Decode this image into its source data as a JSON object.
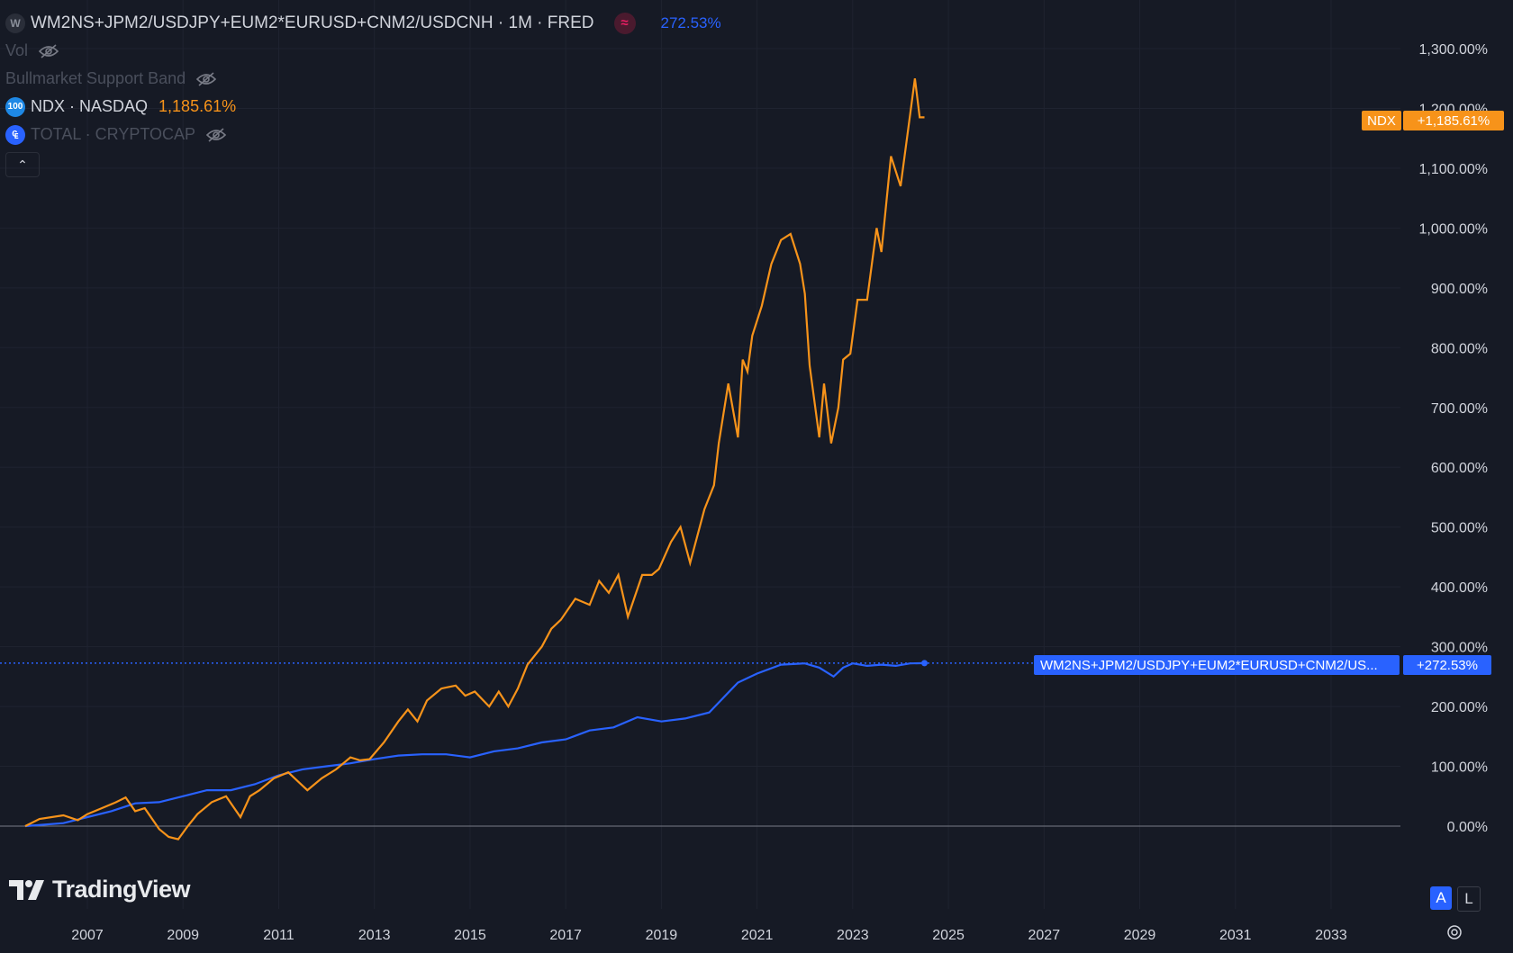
{
  "legend": {
    "main_symbol": "WM2NS+JPM2/USDJPY+EUM2*EURUSD+CNM2/USDCNH · 1M · FRED",
    "main_symbol_icon": "W",
    "main_value": "272.53%",
    "vol_label": "Vol",
    "indicator_label": "Bullmarket Support Band",
    "ndx_label": "NDX · NASDAQ",
    "ndx_icon": "100",
    "ndx_value": "1,185.61%",
    "total_label": "TOTAL · CRYPTOCAP",
    "collapse_icon": "chevron-up-icon"
  },
  "price_labels": {
    "ndx_name": "NDX",
    "ndx_value": "+1,185.61%",
    "m2_name": "WM2NS+JPM2/USDJPY+EUM2*EURUSD+CNM2/US...",
    "m2_value": "+272.53%"
  },
  "logo_text": "TradingView",
  "scale_buttons": {
    "auto": "A",
    "log": "L"
  },
  "colors": {
    "background": "#161a25",
    "ndx": "#f7931a",
    "m2": "#2962ff",
    "grid": "#1f2330",
    "text": "#d1d4dc"
  },
  "chart_data": {
    "type": "line",
    "y_unit": "%",
    "ylim": [
      -100,
      1300
    ],
    "y_ticks": [
      0,
      100,
      200,
      300,
      400,
      500,
      600,
      700,
      800,
      900,
      1000,
      1100,
      1200,
      1300
    ],
    "y_tick_labels": [
      "0.00%",
      "100.00%",
      "200.00%",
      "300.00%",
      "400.00%",
      "500.00%",
      "600.00%",
      "700.00%",
      "800.00%",
      "900.00%",
      "1,000.00%",
      "1,100.00%",
      "1,200.00%",
      "1,300.00%"
    ],
    "x_tick_labels": [
      "2007",
      "2009",
      "2011",
      "2013",
      "2015",
      "2017",
      "2019",
      "2021",
      "2023",
      "2025",
      "2027",
      "2029",
      "2031",
      "2033"
    ],
    "x_ticks": [
      2007,
      2009,
      2011,
      2013,
      2015,
      2017,
      2019,
      2021,
      2023,
      2025,
      2027,
      2029,
      2031,
      2033
    ],
    "series": [
      {
        "name": "NDX · NASDAQ",
        "color": "#f7931a",
        "x": [
          2005.7,
          2006.0,
          2006.5,
          2006.8,
          2007.0,
          2007.3,
          2007.6,
          2007.8,
          2008.0,
          2008.2,
          2008.5,
          2008.7,
          2008.9,
          2009.1,
          2009.3,
          2009.6,
          2009.9,
          2010.2,
          2010.4,
          2010.6,
          2010.9,
          2011.2,
          2011.4,
          2011.6,
          2011.9,
          2012.2,
          2012.5,
          2012.7,
          2012.9,
          2013.2,
          2013.5,
          2013.7,
          2013.9,
          2014.1,
          2014.4,
          2014.7,
          2014.9,
          2015.1,
          2015.4,
          2015.6,
          2015.8,
          2016.0,
          2016.2,
          2016.5,
          2016.7,
          2016.9,
          2017.2,
          2017.5,
          2017.7,
          2017.9,
          2018.1,
          2018.3,
          2018.6,
          2018.8,
          2018.95,
          2019.2,
          2019.4,
          2019.6,
          2019.9,
          2020.1,
          2020.2,
          2020.4,
          2020.6,
          2020.7,
          2020.8,
          2020.9,
          2021.1,
          2021.3,
          2021.5,
          2021.7,
          2021.9,
          2022.0,
          2022.1,
          2022.3,
          2022.4,
          2022.55,
          2022.7,
          2022.8,
          2022.95,
          2023.1,
          2023.3,
          2023.5,
          2023.6,
          2023.8,
          2024.0,
          2024.2,
          2024.3,
          2024.4,
          2024.5
        ],
        "values": [
          0,
          12,
          18,
          10,
          20,
          30,
          40,
          48,
          25,
          30,
          -5,
          -18,
          -22,
          0,
          20,
          40,
          50,
          15,
          50,
          60,
          80,
          90,
          75,
          60,
          80,
          95,
          115,
          110,
          112,
          140,
          175,
          195,
          175,
          210,
          230,
          235,
          218,
          225,
          200,
          225,
          200,
          230,
          270,
          300,
          330,
          345,
          380,
          370,
          410,
          390,
          420,
          350,
          420,
          420,
          430,
          475,
          500,
          440,
          530,
          570,
          640,
          740,
          650,
          780,
          760,
          820,
          870,
          940,
          980,
          990,
          940,
          890,
          770,
          650,
          740,
          640,
          700,
          780,
          790,
          880,
          880,
          1000,
          960,
          1120,
          1070,
          1190,
          1250,
          1185,
          1185
        ]
      },
      {
        "name": "WM2NS+JPM2/USDJPY+EUM2*EURUSD+CNM2/USDCNH",
        "color": "#2962ff",
        "x": [
          2005.7,
          2006.5,
          2007.0,
          2007.5,
          2008.0,
          2008.5,
          2009.0,
          2009.5,
          2010.0,
          2010.5,
          2011.0,
          2011.5,
          2012.0,
          2012.5,
          2013.0,
          2013.5,
          2014.0,
          2014.5,
          2015.0,
          2015.5,
          2016.0,
          2016.5,
          2017.0,
          2017.5,
          2018.0,
          2018.5,
          2019.0,
          2019.5,
          2020.0,
          2020.3,
          2020.6,
          2021.0,
          2021.5,
          2022.0,
          2022.3,
          2022.6,
          2022.8,
          2023.0,
          2023.3,
          2023.6,
          2023.9,
          2024.2,
          2024.5
        ],
        "values": [
          0,
          5,
          15,
          25,
          38,
          40,
          50,
          60,
          60,
          70,
          85,
          95,
          100,
          105,
          112,
          118,
          120,
          120,
          115,
          125,
          130,
          140,
          145,
          160,
          165,
          182,
          175,
          180,
          190,
          215,
          240,
          255,
          270,
          272,
          265,
          250,
          265,
          272,
          268,
          270,
          268,
          272,
          272.53
        ]
      }
    ]
  }
}
